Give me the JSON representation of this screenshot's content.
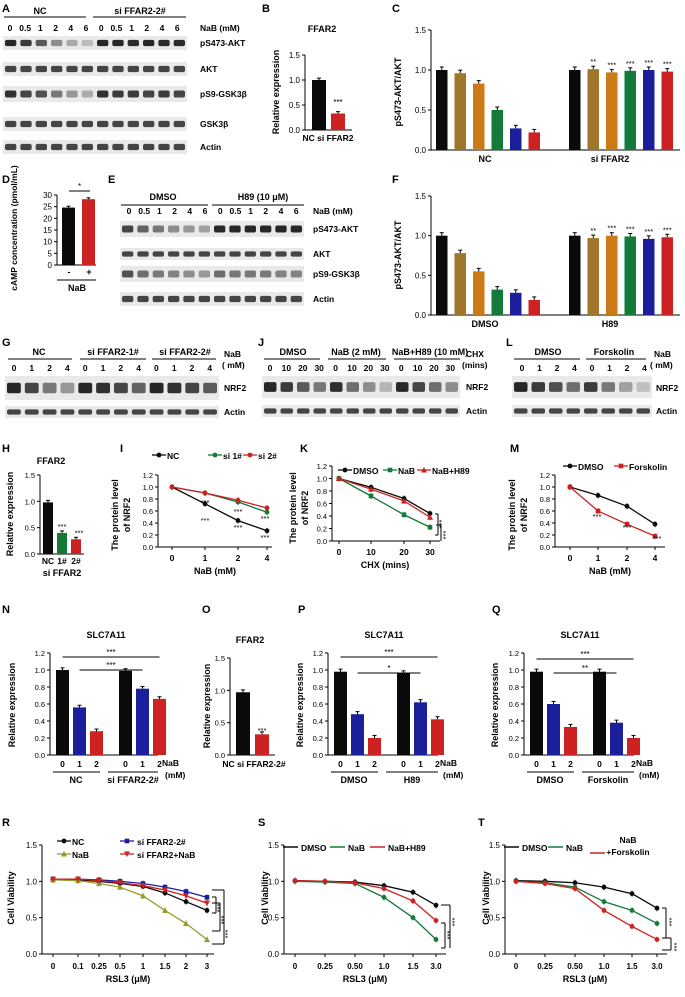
{
  "colors": {
    "black": "#0a0a0a",
    "brown": "#a0762a",
    "orange": "#cc7a16",
    "green": "#137a3a",
    "navy": "#1c1f9c",
    "red": "#cc2222",
    "olive": "#9a9a2a"
  },
  "panels": {
    "A": {
      "letter": "A",
      "nc": "NC",
      "si": "si FFAR2-2#",
      "nab": "NaB (mM)",
      "doses": [
        "0",
        "0.5",
        "1",
        "2",
        "4",
        "6",
        "0",
        "0.5",
        "1",
        "2",
        "4",
        "6"
      ],
      "blots": [
        "pS473-AKT",
        "AKT",
        "pS9-GSK3β",
        "GSK3β",
        "Actin"
      ]
    },
    "B": {
      "letter": "B",
      "title": "FFAR2",
      "ylabel": "Relative expression",
      "xlabel": "NC si FFAR2",
      "yticks": [
        "0.0",
        "0.5",
        "1.0",
        "1.5"
      ],
      "sig": "***"
    },
    "C": {
      "letter": "C",
      "ylabel": "pS473-AKT/AKT",
      "groups": [
        "NC",
        "si FFAR2"
      ],
      "yticks": [
        "0.0",
        "0.5",
        "1.0",
        "1.5"
      ],
      "sigs": [
        "**",
        "***",
        "***",
        "***",
        "***"
      ]
    },
    "D": {
      "letter": "D",
      "ylabel": "cAMP concentration (pmol/mL)",
      "xticks": [
        "-",
        "+"
      ],
      "xlabel": "NaB",
      "yticks": [
        "0",
        "5",
        "10",
        "15",
        "20",
        "25",
        "30"
      ],
      "sig": "*"
    },
    "E": {
      "letter": "E",
      "dmso": "DMSO",
      "h89": "H89 (10 μM)",
      "nab": "NaB (mM)",
      "doses": [
        "0",
        "0.5",
        "1",
        "2",
        "4",
        "6",
        "0",
        "0.5",
        "1",
        "2",
        "4",
        "6"
      ],
      "blots": [
        "pS473-AKT",
        "AKT",
        "pS9-GSK3β",
        "Actin"
      ]
    },
    "F": {
      "letter": "F",
      "ylabel": "pS473-AKT/AKT",
      "groups": [
        "DMSO",
        "H89"
      ],
      "yticks": [
        "0.0",
        "0.5",
        "1.0",
        "1.5"
      ],
      "sigs": [
        "**",
        "***",
        "***",
        "***",
        "***"
      ]
    },
    "G": {
      "letter": "G",
      "groups": [
        "NC",
        "si FFAR2-1#",
        "si FFAR2-2#"
      ],
      "doses": [
        "0",
        "1",
        "2",
        "4",
        "0",
        "1",
        "2",
        "4",
        "0",
        "1",
        "2",
        "4"
      ],
      "nab1": "NaB",
      "nab2": "( mM)",
      "blots": [
        "NRF2",
        "Actin"
      ]
    },
    "J": {
      "letter": "J",
      "groups": [
        "DMSO",
        "NaB (2 mM)",
        "NaB+H89 (10 mM)"
      ],
      "times": [
        "0",
        "10",
        "20",
        "30",
        "0",
        "10",
        "20",
        "30",
        "0",
        "10",
        "20",
        "30"
      ],
      "chx1": "CHX",
      "chx2": "(mins)",
      "blots": [
        "NRF2",
        "Actin"
      ]
    },
    "L": {
      "letter": "L",
      "groups": [
        "DMSO",
        "Forskolin"
      ],
      "doses": [
        "0",
        "1",
        "2",
        "4",
        "0",
        "1",
        "2",
        "4"
      ],
      "nab1": "NaB",
      "nab2": "( mM)",
      "blots": [
        "NRF2",
        "Actin"
      ]
    },
    "H": {
      "letter": "H",
      "title": "FFAR2",
      "ylabel": "Relative expression",
      "xticks": [
        "NC",
        "1#",
        "2#"
      ],
      "xlabel": "si FFAR2",
      "yticks": [
        "0.0",
        "0.5",
        "1.0",
        "1.5"
      ],
      "sigs": [
        "***",
        "***"
      ]
    },
    "I": {
      "letter": "I",
      "ylabel1": "The protein level",
      "ylabel2": "of NRF2",
      "xlabel": "NaB (mM)",
      "xticks": [
        "0",
        "1",
        "2",
        "4"
      ],
      "yticks": [
        "0.0",
        "0.2",
        "0.4",
        "0.6",
        "0.8",
        "1.0",
        "1.2"
      ],
      "legend": [
        "NC",
        "si 1#",
        "si 2#"
      ],
      "sigs": [
        "***",
        "***",
        "***",
        "***",
        "***",
        "***"
      ]
    },
    "K": {
      "letter": "K",
      "ylabel1": "The protein level",
      "ylabel2": "of NRF2",
      "xlabel": "CHX (mins)",
      "xticks": [
        "0",
        "10",
        "20",
        "30"
      ],
      "yticks": [
        "0.0",
        "0.2",
        "0.4",
        "0.6",
        "0.8",
        "1.0",
        "1.2"
      ],
      "legend": [
        "DMSO",
        "NaB",
        "NaB+H89"
      ],
      "sigs": [
        "***",
        "***"
      ]
    },
    "M": {
      "letter": "M",
      "ylabel1": "The protein level",
      "ylabel2": "of NRF2",
      "xlabel": "NaB (mM)",
      "xticks": [
        "0",
        "1",
        "2",
        "4"
      ],
      "yticks": [
        "0.0",
        "0.2",
        "0.4",
        "0.6",
        "0.8",
        "1.0",
        "1.2"
      ],
      "legend": [
        "DMSO",
        "Forskolin"
      ],
      "sigs": [
        "***",
        "***",
        "***"
      ]
    },
    "N": {
      "letter": "N",
      "title": "SLC7A11",
      "ylabel": "Relative expression",
      "xticks": [
        "0",
        "1",
        "2",
        "0",
        "1",
        "2"
      ],
      "groups": [
        "NC",
        "si FFAR2-2#"
      ],
      "nab1": "NaB",
      "nab2": "(mM)",
      "yticks": [
        "0.0",
        "0.2",
        "0.4",
        "0.6",
        "0.8",
        "1.0",
        "1.2"
      ],
      "sigs": [
        "***",
        "***"
      ]
    },
    "O": {
      "letter": "O",
      "title": "FFAR2",
      "ylabel": "Relative expression",
      "xlabel": "NC si FFAR2-2#",
      "yticks": [
        "0.0",
        "0.5",
        "1.0",
        "1.5"
      ],
      "sig": "***"
    },
    "P": {
      "letter": "P",
      "title": "SLC7A11",
      "ylabel": "Relative expression",
      "xticks": [
        "0",
        "1",
        "2",
        "0",
        "1",
        "2"
      ],
      "groups": [
        "DMSO",
        "H89"
      ],
      "nab1": "NaB",
      "nab2": "(mM)",
      "yticks": [
        "0.0",
        "0.2",
        "0.4",
        "0.6",
        "0.8",
        "1.0",
        "1.2"
      ],
      "sigs": [
        "***",
        "*"
      ]
    },
    "Q": {
      "letter": "Q",
      "title": "SLC7A11",
      "ylabel": "Relative expression",
      "xticks": [
        "0",
        "1",
        "2",
        "0",
        "1",
        "2"
      ],
      "groups": [
        "DMSO",
        "Forskolin"
      ],
      "nab1": "NaB",
      "nab2": "(mM)",
      "yticks": [
        "0.0",
        "0.2",
        "0.4",
        "0.6",
        "0.8",
        "1.0",
        "1.2"
      ],
      "sigs": [
        "***",
        "**"
      ]
    },
    "R": {
      "letter": "R",
      "ylabel": "Cell Viability",
      "xlabel": "RSL3 (μM)",
      "xticks": [
        "0",
        "0.1",
        "0.25",
        "0.5",
        "1",
        "1.5",
        "2",
        "3"
      ],
      "yticks": [
        "0.0",
        "0.5",
        "1.0",
        "1.5"
      ],
      "legend": [
        "NC",
        "si FFAR2-2#",
        "NaB",
        "si FFAR2+NaB"
      ],
      "sigs": [
        "***",
        "***",
        "***"
      ]
    },
    "S": {
      "letter": "S",
      "ylabel": "Cell Viability",
      "xlabel": "RSL3 (μM)",
      "xticks": [
        "0",
        "0.25",
        "0.50",
        "1.0",
        "1.5",
        "3.0"
      ],
      "yticks": [
        "0.0",
        "0.5",
        "1.0",
        "1.5"
      ],
      "legend": [
        "DMSO",
        "NaB",
        "NaB+H89"
      ],
      "sigs": [
        "***",
        "***"
      ]
    },
    "T": {
      "letter": "T",
      "ylabel": "Cell Viability",
      "xlabel": "RSL3 (μM)",
      "xticks": [
        "0",
        "0.25",
        "0.50",
        "1.0",
        "1.5",
        "3.0"
      ],
      "yticks": [
        "0.0",
        "0.5",
        "1.0",
        "1.5"
      ],
      "legend": [
        "DMSO",
        "NaB",
        "NaB",
        "+Forskolin"
      ],
      "sigs": [
        "***",
        "***"
      ]
    }
  },
  "chart_data": [
    {
      "id": "B",
      "type": "bar",
      "title": "FFAR2",
      "categories": [
        "NC",
        "si FFAR2"
      ],
      "values": [
        1.0,
        0.33
      ],
      "ylim": [
        0,
        1.5
      ],
      "ylabel": "Relative expression"
    },
    {
      "id": "C",
      "type": "bar",
      "ylabel": "pS473-AKT/AKT",
      "ylim": [
        0,
        1.5
      ],
      "categories": [
        "NC 0",
        "NC 0.5",
        "NC 1",
        "NC 2",
        "NC 4",
        "NC 6",
        "si 0",
        "si 0.5",
        "si 1",
        "si 2",
        "si 4",
        "si 6"
      ],
      "values": [
        1.0,
        0.96,
        0.83,
        0.5,
        0.27,
        0.22,
        1.0,
        1.01,
        0.97,
        0.99,
        1.0,
        0.98
      ]
    },
    {
      "id": "D",
      "type": "bar",
      "ylabel": "cAMP concentration (pmol/mL)",
      "ylim": [
        0,
        30
      ],
      "categories": [
        "-",
        "+"
      ],
      "values": [
        24.6,
        28.2
      ]
    },
    {
      "id": "F",
      "type": "bar",
      "ylabel": "pS473-AKT/AKT",
      "ylim": [
        0,
        1.5
      ],
      "categories": [
        "DMSO 0",
        "DMSO 0.5",
        "DMSO 1",
        "DMSO 2",
        "DMSO 4",
        "DMSO 6",
        "H89 0",
        "H89 0.5",
        "H89 1",
        "H89 2",
        "H89 4",
        "H89 6"
      ],
      "values": [
        1.0,
        0.78,
        0.55,
        0.32,
        0.28,
        0.19,
        1.0,
        0.97,
        1.0,
        0.99,
        0.96,
        0.98
      ]
    },
    {
      "id": "H",
      "type": "bar",
      "title": "FFAR2",
      "ylim": [
        0,
        1.5
      ],
      "categories": [
        "NC",
        "1#",
        "2#"
      ],
      "values": [
        0.98,
        0.4,
        0.28
      ]
    },
    {
      "id": "I",
      "type": "line",
      "xlabel": "NaB (mM)",
      "ylim": [
        0,
        1.2
      ],
      "x": [
        "0",
        "1",
        "2",
        "4"
      ],
      "series": [
        {
          "name": "NC",
          "values": [
            1.0,
            0.72,
            0.44,
            0.27
          ]
        },
        {
          "name": "si 1#",
          "values": [
            1.0,
            0.9,
            0.75,
            0.58
          ]
        },
        {
          "name": "si 2#",
          "values": [
            1.0,
            0.9,
            0.78,
            0.65
          ]
        }
      ]
    },
    {
      "id": "K",
      "type": "line",
      "xlabel": "CHX (mins)",
      "ylim": [
        0,
        1.2
      ],
      "x": [
        "0",
        "10",
        "20",
        "30"
      ],
      "series": [
        {
          "name": "DMSO",
          "values": [
            1.0,
            0.86,
            0.68,
            0.44
          ]
        },
        {
          "name": "NaB",
          "values": [
            1.0,
            0.72,
            0.42,
            0.22
          ]
        },
        {
          "name": "NaB+H89",
          "values": [
            1.0,
            0.83,
            0.64,
            0.38
          ]
        }
      ]
    },
    {
      "id": "M",
      "type": "line",
      "xlabel": "NaB (mM)",
      "ylim": [
        0,
        1.2
      ],
      "x": [
        "0",
        "1",
        "2",
        "4"
      ],
      "series": [
        {
          "name": "DMSO",
          "values": [
            1.0,
            0.86,
            0.68,
            0.38
          ]
        },
        {
          "name": "Forskolin",
          "values": [
            1.0,
            0.6,
            0.38,
            0.18
          ]
        }
      ]
    },
    {
      "id": "N",
      "type": "bar",
      "title": "SLC7A11",
      "ylim": [
        0,
        1.2
      ],
      "categories": [
        "NC 0",
        "NC 1",
        "NC 2",
        "si 0",
        "si 1",
        "si 2"
      ],
      "values": [
        1.0,
        0.56,
        0.28,
        0.99,
        0.78,
        0.66
      ]
    },
    {
      "id": "O",
      "type": "bar",
      "title": "FFAR2",
      "ylim": [
        0,
        1.5
      ],
      "categories": [
        "NC",
        "si FFAR2-2#"
      ],
      "values": [
        0.97,
        0.32
      ]
    },
    {
      "id": "P",
      "type": "bar",
      "title": "SLC7A11",
      "ylim": [
        0,
        1.2
      ],
      "categories": [
        "DMSO 0",
        "DMSO 1",
        "DMSO 2",
        "H89 0",
        "H89 1",
        "H89 2"
      ],
      "values": [
        0.98,
        0.48,
        0.2,
        0.96,
        0.62,
        0.42
      ]
    },
    {
      "id": "Q",
      "type": "bar",
      "title": "SLC7A11",
      "ylim": [
        0,
        1.2
      ],
      "categories": [
        "DMSO 0",
        "DMSO 1",
        "DMSO 2",
        "Fsk 0",
        "Fsk 1",
        "Fsk 2"
      ],
      "values": [
        0.98,
        0.6,
        0.33,
        0.98,
        0.38,
        0.2
      ]
    },
    {
      "id": "R",
      "type": "line",
      "xlabel": "RSL3 (μM)",
      "ylim": [
        0,
        1.5
      ],
      "x": [
        "0",
        "0.1",
        "0.25",
        "0.5",
        "1",
        "1.5",
        "2",
        "3"
      ],
      "series": [
        {
          "name": "NC",
          "values": [
            1.02,
            1.02,
            1.0,
            0.97,
            0.93,
            0.84,
            0.72,
            0.6
          ]
        },
        {
          "name": "si FFAR2-2#",
          "values": [
            1.03,
            1.03,
            1.02,
            1.0,
            0.97,
            0.92,
            0.86,
            0.78
          ]
        },
        {
          "name": "NaB",
          "values": [
            1.02,
            1.01,
            0.97,
            0.92,
            0.8,
            0.6,
            0.42,
            0.2
          ]
        },
        {
          "name": "si FFAR2+NaB",
          "values": [
            1.03,
            1.03,
            1.01,
            0.98,
            0.94,
            0.88,
            0.8,
            0.7
          ]
        }
      ]
    },
    {
      "id": "S",
      "type": "line",
      "xlabel": "RSL3 (μM)",
      "ylim": [
        0,
        1.5
      ],
      "x": [
        "0",
        "0.25",
        "0.50",
        "1.0",
        "1.5",
        "3.0"
      ],
      "series": [
        {
          "name": "DMSO",
          "values": [
            1.01,
            1.0,
            0.99,
            0.94,
            0.85,
            0.67
          ]
        },
        {
          "name": "NaB",
          "values": [
            1.0,
            0.99,
            0.97,
            0.78,
            0.5,
            0.2
          ]
        },
        {
          "name": "NaB+H89",
          "values": [
            1.01,
            1.0,
            0.98,
            0.9,
            0.73,
            0.46
          ]
        }
      ]
    },
    {
      "id": "T",
      "type": "line",
      "xlabel": "RSL3 (μM)",
      "ylim": [
        0,
        1.5
      ],
      "x": [
        "0",
        "0.25",
        "0.50",
        "1.0",
        "1.5",
        "3.0"
      ],
      "series": [
        {
          "name": "DMSO",
          "values": [
            1.01,
            1.0,
            0.98,
            0.92,
            0.83,
            0.63
          ]
        },
        {
          "name": "NaB",
          "values": [
            1.0,
            0.98,
            0.92,
            0.72,
            0.6,
            0.42
          ]
        },
        {
          "name": "NaB+Forskolin",
          "values": [
            1.0,
            0.97,
            0.9,
            0.6,
            0.38,
            0.2
          ]
        }
      ]
    }
  ]
}
